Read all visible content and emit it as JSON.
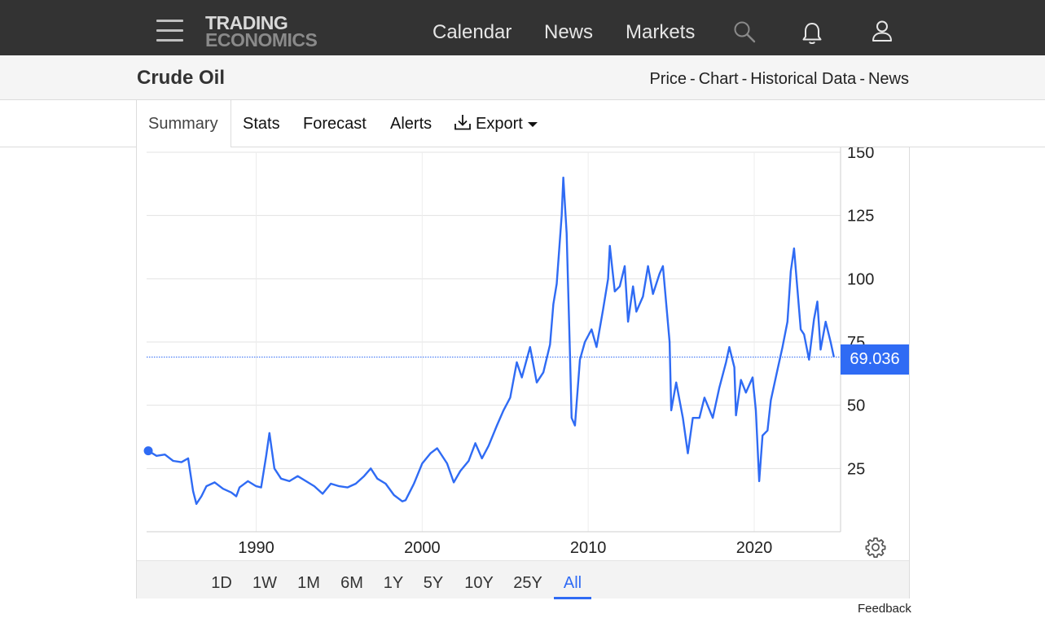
{
  "nav": {
    "logo_line1": "TRADING",
    "logo_line2": "ECONOMICS",
    "links": [
      "Calendar",
      "News",
      "Markets"
    ],
    "icons": [
      "menu-icon",
      "search-icon",
      "bell-icon",
      "user-icon"
    ]
  },
  "header": {
    "title": "Crude Oil",
    "breadcrumbs": [
      "Price",
      "Chart",
      "Historical Data",
      "News"
    ]
  },
  "tabs": {
    "summary": "Summary",
    "stats": "Stats",
    "forecast": "Forecast",
    "alerts": "Alerts",
    "export": "Export"
  },
  "ranges": [
    "1D",
    "1W",
    "1M",
    "6M",
    "1Y",
    "5Y",
    "10Y",
    "25Y",
    "All"
  ],
  "active_range": "All",
  "current_price": "69.036",
  "feedback": "Feedback",
  "colors": {
    "line": "#2f6bf4",
    "navbar": "#333333",
    "accent": "#2f6bf4"
  },
  "chart_data": {
    "type": "line",
    "title": "",
    "xlabel": "",
    "ylabel": "",
    "x_ticks": [
      "1990",
      "2000",
      "2010",
      "2020"
    ],
    "y_ticks": [
      25,
      50,
      75,
      100,
      125,
      150
    ],
    "ylim": [
      0,
      150
    ],
    "xlim": [
      1983.4,
      2025.2
    ],
    "grid": true,
    "y_axis_side": "right",
    "last_value": 69.036,
    "series": [
      {
        "points": [
          [
            1983.5,
            32
          ],
          [
            1984.0,
            30
          ],
          [
            1984.5,
            30.5
          ],
          [
            1985.0,
            28
          ],
          [
            1985.5,
            27.5
          ],
          [
            1985.9,
            29
          ],
          [
            1986.2,
            16
          ],
          [
            1986.4,
            11
          ],
          [
            1986.7,
            14
          ],
          [
            1987.0,
            18
          ],
          [
            1987.5,
            19.5
          ],
          [
            1988.0,
            17
          ],
          [
            1988.5,
            15.5
          ],
          [
            1988.8,
            14
          ],
          [
            1989.0,
            17.5
          ],
          [
            1989.5,
            20
          ],
          [
            1990.0,
            18
          ],
          [
            1990.3,
            17.5
          ],
          [
            1990.6,
            30
          ],
          [
            1990.8,
            39
          ],
          [
            1991.1,
            25
          ],
          [
            1991.5,
            21
          ],
          [
            1992.0,
            20
          ],
          [
            1992.5,
            22
          ],
          [
            1993.0,
            20
          ],
          [
            1993.5,
            18
          ],
          [
            1994.0,
            15
          ],
          [
            1994.5,
            19
          ],
          [
            1995.0,
            18
          ],
          [
            1995.5,
            17.5
          ],
          [
            1996.0,
            19
          ],
          [
            1996.5,
            22
          ],
          [
            1996.9,
            25
          ],
          [
            1997.3,
            21
          ],
          [
            1997.8,
            19
          ],
          [
            1998.3,
            14.5
          ],
          [
            1998.8,
            12
          ],
          [
            1999.0,
            12.5
          ],
          [
            1999.5,
            19
          ],
          [
            2000.0,
            27
          ],
          [
            2000.5,
            31
          ],
          [
            2000.9,
            33
          ],
          [
            2001.5,
            27
          ],
          [
            2001.9,
            19.5
          ],
          [
            2002.3,
            24
          ],
          [
            2002.8,
            28
          ],
          [
            2003.2,
            35
          ],
          [
            2003.6,
            29
          ],
          [
            2004.0,
            34
          ],
          [
            2004.5,
            42
          ],
          [
            2004.9,
            48
          ],
          [
            2005.3,
            53
          ],
          [
            2005.7,
            67
          ],
          [
            2006.0,
            61
          ],
          [
            2006.5,
            73
          ],
          [
            2006.9,
            59
          ],
          [
            2007.3,
            63
          ],
          [
            2007.7,
            74
          ],
          [
            2007.9,
            90
          ],
          [
            2008.1,
            98
          ],
          [
            2008.4,
            125
          ],
          [
            2008.5,
            140
          ],
          [
            2008.7,
            118
          ],
          [
            2008.9,
            70
          ],
          [
            2009.0,
            45
          ],
          [
            2009.2,
            42
          ],
          [
            2009.5,
            68
          ],
          [
            2009.8,
            75
          ],
          [
            2010.2,
            80
          ],
          [
            2010.5,
            73
          ],
          [
            2010.9,
            88
          ],
          [
            2011.2,
            100
          ],
          [
            2011.3,
            113
          ],
          [
            2011.6,
            95
          ],
          [
            2011.9,
            97
          ],
          [
            2012.2,
            105
          ],
          [
            2012.4,
            83
          ],
          [
            2012.7,
            97
          ],
          [
            2012.9,
            87
          ],
          [
            2013.3,
            93
          ],
          [
            2013.6,
            105
          ],
          [
            2013.9,
            94
          ],
          [
            2014.3,
            102
          ],
          [
            2014.5,
            105
          ],
          [
            2014.9,
            75
          ],
          [
            2015.0,
            48
          ],
          [
            2015.3,
            59
          ],
          [
            2015.7,
            45
          ],
          [
            2016.0,
            31
          ],
          [
            2016.3,
            45
          ],
          [
            2016.7,
            45
          ],
          [
            2017.0,
            53
          ],
          [
            2017.5,
            45
          ],
          [
            2017.9,
            57
          ],
          [
            2018.3,
            67
          ],
          [
            2018.5,
            73
          ],
          [
            2018.8,
            65
          ],
          [
            2018.9,
            46
          ],
          [
            2019.2,
            60
          ],
          [
            2019.5,
            55
          ],
          [
            2019.9,
            61
          ],
          [
            2020.1,
            48
          ],
          [
            2020.3,
            20
          ],
          [
            2020.5,
            38
          ],
          [
            2020.8,
            40
          ],
          [
            2021.0,
            52
          ],
          [
            2021.4,
            64
          ],
          [
            2021.7,
            73
          ],
          [
            2022.0,
            83
          ],
          [
            2022.2,
            103
          ],
          [
            2022.4,
            112
          ],
          [
            2022.6,
            96
          ],
          [
            2022.8,
            80
          ],
          [
            2023.0,
            78
          ],
          [
            2023.3,
            68
          ],
          [
            2023.6,
            84
          ],
          [
            2023.8,
            91
          ],
          [
            2024.0,
            72
          ],
          [
            2024.3,
            83
          ],
          [
            2024.6,
            75
          ],
          [
            2024.8,
            69.036
          ]
        ]
      }
    ]
  }
}
